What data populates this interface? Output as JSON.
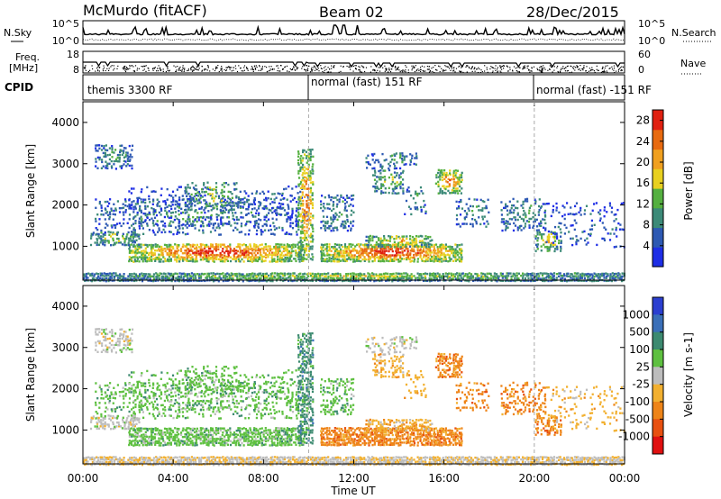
{
  "header": {
    "title": "McMurdo (fitACF)",
    "beam": "Beam 02",
    "date": "28/Dec/2015"
  },
  "chart_data": [
    {
      "type": "line",
      "panel": "noise",
      "left_label": "N.Sky",
      "right_label": "N.Search",
      "left_ticks": [
        "10^5",
        "10^0"
      ],
      "right_ticks": [
        "10^5",
        "10^0"
      ]
    },
    {
      "type": "line",
      "panel": "frequency",
      "left_label_line1": "Freq.",
      "left_label_line2": "[MHz]",
      "right_label": "Nave",
      "left_ticks": [
        "18",
        "8"
      ],
      "right_ticks": [
        "60",
        "0"
      ]
    },
    {
      "type": "table",
      "panel": "cpid",
      "label": "CPID",
      "segments": [
        {
          "name": "themis 3300 RF",
          "start_hour": 0,
          "end_hour": 10
        },
        {
          "name": "normal (fast) 151 RF",
          "start_hour": 10,
          "end_hour": 20
        },
        {
          "name": "normal (fast) -151 RF",
          "start_hour": 20,
          "end_hour": 24
        }
      ]
    },
    {
      "type": "heatmap",
      "panel": "power",
      "ylabel": "Slant Range [km]",
      "yticks": [
        1000,
        2000,
        3000,
        4000
      ],
      "ylim": [
        180,
        4500
      ],
      "colorbar_label": "Power [dB]",
      "colorbar_ticks": [
        4,
        8,
        12,
        16,
        20,
        24,
        28
      ],
      "colorbar_range": [
        0,
        30
      ],
      "colors": [
        "#1e2ee6",
        "#2d59b3",
        "#3c8a78",
        "#55b040",
        "#e8d020",
        "#f0a020",
        "#e86a10",
        "#e02010"
      ]
    },
    {
      "type": "heatmap",
      "panel": "velocity",
      "ylabel": "Slant Range [km]",
      "yticks": [
        1000,
        2000,
        3000,
        4000
      ],
      "ylim": [
        180,
        4500
      ],
      "colorbar_label": "Velocity [m s-1]",
      "colorbar_ticks": [
        1000,
        500,
        100,
        25,
        -25,
        -100,
        -500,
        -1000
      ],
      "colors": [
        "#2b3fd0",
        "#3a6fb8",
        "#3c8a70",
        "#5ec040",
        "#bdbdbd",
        "#f2b030",
        "#ee8418",
        "#e85010",
        "#e01010"
      ]
    }
  ],
  "xaxis": {
    "label": "Time UT",
    "ticks": [
      "00:00",
      "04:00",
      "08:00",
      "12:00",
      "16:00",
      "20:00",
      "00:00"
    ]
  }
}
